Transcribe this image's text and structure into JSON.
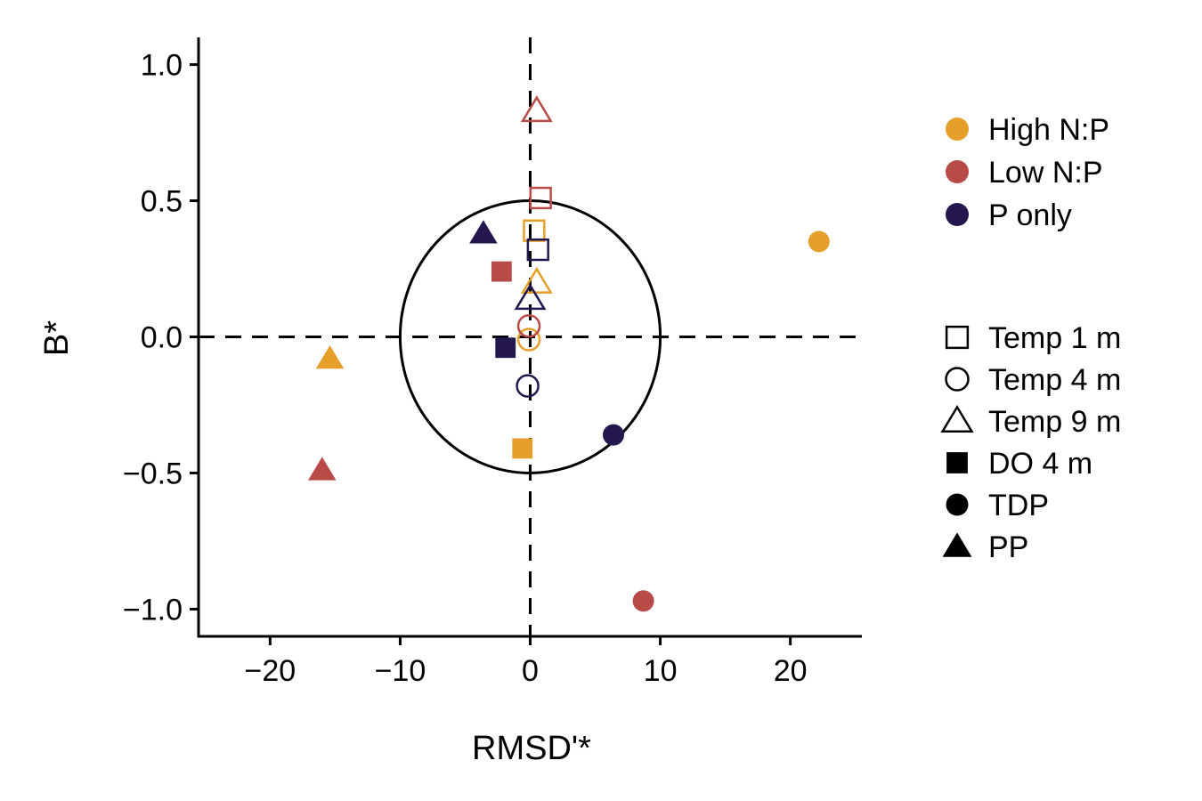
{
  "chart_data": {
    "type": "scatter",
    "title": "",
    "xlabel": "RMSD'*",
    "ylabel": "B*",
    "xlim": [
      -25.5,
      25.5
    ],
    "ylim": [
      -1.1,
      1.1
    ],
    "x_ticks": [
      -20,
      -10,
      0,
      10,
      20
    ],
    "x_tick_labels": [
      "−20",
      "−10",
      "0",
      "10",
      "20"
    ],
    "y_ticks": [
      -1.0,
      -0.5,
      0.0,
      0.5,
      1.0
    ],
    "y_tick_labels": [
      "−1.0",
      "−0.5",
      "0.0",
      "0.5",
      "1.0"
    ],
    "grid": false,
    "reference_lines": {
      "x": 0,
      "y": 0,
      "style": "dashed"
    },
    "reference_circle": {
      "center": [
        0,
        0
      ],
      "rx": 10,
      "ry": 0.5
    },
    "legend_placement": "right",
    "color_legend": [
      {
        "label": "High N:P",
        "color": "#E69F2B"
      },
      {
        "label": "Low N:P",
        "color": "#B84A47"
      },
      {
        "label": "P only",
        "color": "#24174F"
      }
    ],
    "shape_legend": [
      {
        "label": "Temp 1 m",
        "shape": "square",
        "filled": false
      },
      {
        "label": "Temp 4 m",
        "shape": "circle",
        "filled": false
      },
      {
        "label": "Temp 9 m",
        "shape": "triangle",
        "filled": false
      },
      {
        "label": "DO 4 m",
        "shape": "square",
        "filled": true
      },
      {
        "label": "TDP",
        "shape": "circle",
        "filled": true
      },
      {
        "label": "PP",
        "shape": "triangle",
        "filled": true
      }
    ],
    "series": [
      {
        "group": "High N:P",
        "variable": "Temp 1 m",
        "x": 0.3,
        "y": 0.39
      },
      {
        "group": "High N:P",
        "variable": "Temp 4 m",
        "x": -0.1,
        "y": -0.01
      },
      {
        "group": "High N:P",
        "variable": "Temp 9 m",
        "x": 0.5,
        "y": 0.2
      },
      {
        "group": "High N:P",
        "variable": "DO 4 m",
        "x": -0.6,
        "y": -0.41
      },
      {
        "group": "High N:P",
        "variable": "TDP",
        "x": 22.2,
        "y": 0.35
      },
      {
        "group": "High N:P",
        "variable": "PP",
        "x": -15.4,
        "y": -0.08
      },
      {
        "group": "Low N:P",
        "variable": "Temp 1 m",
        "x": 0.8,
        "y": 0.51
      },
      {
        "group": "Low N:P",
        "variable": "Temp 4 m",
        "x": -0.1,
        "y": 0.04
      },
      {
        "group": "Low N:P",
        "variable": "Temp 9 m",
        "x": 0.5,
        "y": 0.83
      },
      {
        "group": "Low N:P",
        "variable": "DO 4 m",
        "x": -2.2,
        "y": 0.24
      },
      {
        "group": "Low N:P",
        "variable": "TDP",
        "x": 8.7,
        "y": -0.97
      },
      {
        "group": "Low N:P",
        "variable": "PP",
        "x": -16.0,
        "y": -0.49
      },
      {
        "group": "P only",
        "variable": "Temp 1 m",
        "x": 0.6,
        "y": 0.32
      },
      {
        "group": "P only",
        "variable": "Temp 4 m",
        "x": -0.2,
        "y": -0.18
      },
      {
        "group": "P only",
        "variable": "Temp 9 m",
        "x": 0.0,
        "y": 0.14
      },
      {
        "group": "P only",
        "variable": "DO 4 m",
        "x": -1.9,
        "y": -0.04
      },
      {
        "group": "P only",
        "variable": "TDP",
        "x": 6.4,
        "y": -0.36
      },
      {
        "group": "P only",
        "variable": "PP",
        "x": -3.6,
        "y": 0.38
      }
    ]
  }
}
